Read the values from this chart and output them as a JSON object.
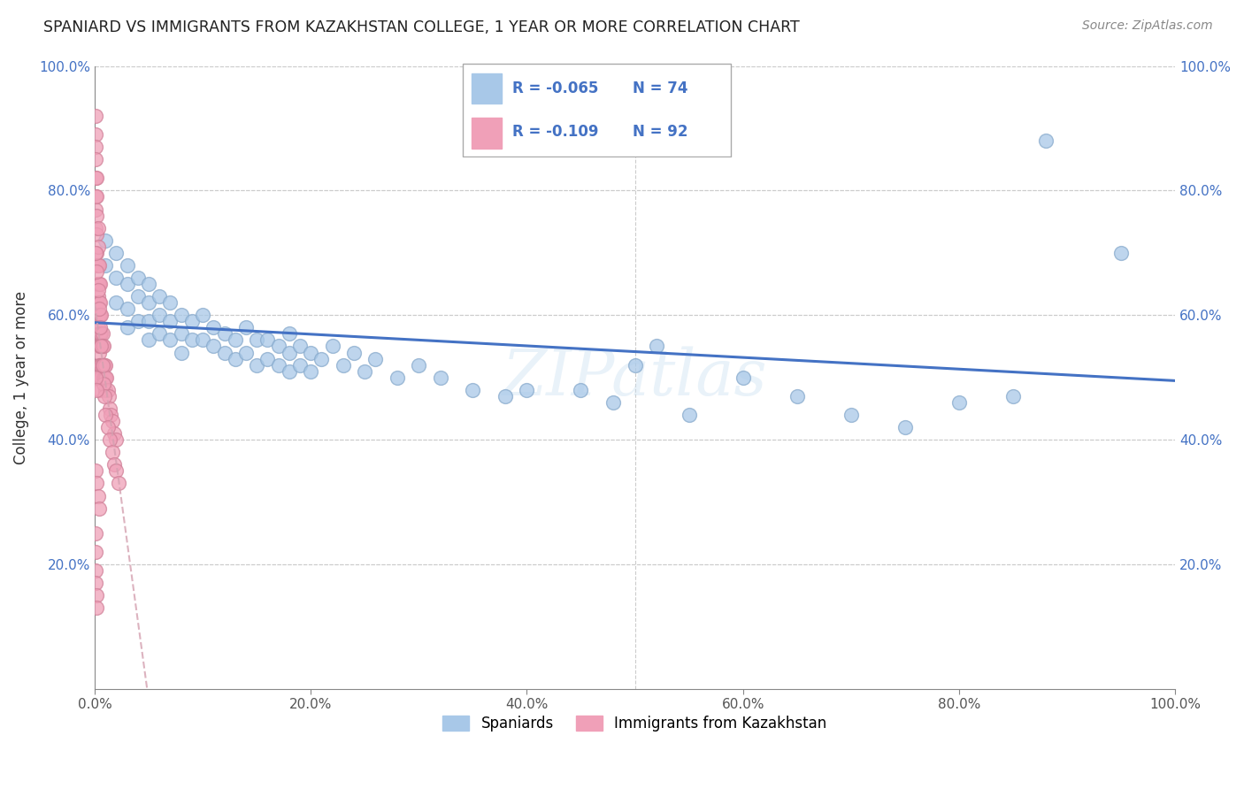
{
  "title": "SPANIARD VS IMMIGRANTS FROM KAZAKHSTAN COLLEGE, 1 YEAR OR MORE CORRELATION CHART",
  "source_text": "Source: ZipAtlas.com",
  "ylabel": "College, 1 year or more",
  "xlim": [
    0.0,
    1.0
  ],
  "ylim": [
    0.0,
    1.0
  ],
  "xtick_positions": [
    0.0,
    0.2,
    0.4,
    0.6,
    0.8,
    1.0
  ],
  "xtick_labels": [
    "0.0%",
    "20.0%",
    "40.0%",
    "60.0%",
    "80.0%",
    "100.0%"
  ],
  "ytick_positions": [
    0.2,
    0.4,
    0.6,
    0.8,
    1.0
  ],
  "ytick_labels": [
    "20.0%",
    "40.0%",
    "60.0%",
    "80.0%",
    "100.0%"
  ],
  "blue_color": "#a8c8e8",
  "blue_edge": "#88aacc",
  "pink_color": "#f0a0b8",
  "pink_edge": "#d08098",
  "line_blue_color": "#4472c4",
  "line_pink_color": "#d4a0b0",
  "watermark": "ZIPatlas",
  "spaniards_x": [
    0.01,
    0.01,
    0.02,
    0.02,
    0.02,
    0.03,
    0.03,
    0.03,
    0.03,
    0.04,
    0.04,
    0.04,
    0.05,
    0.05,
    0.05,
    0.05,
    0.06,
    0.06,
    0.06,
    0.07,
    0.07,
    0.07,
    0.08,
    0.08,
    0.08,
    0.09,
    0.09,
    0.1,
    0.1,
    0.11,
    0.11,
    0.12,
    0.12,
    0.13,
    0.13,
    0.14,
    0.14,
    0.15,
    0.15,
    0.16,
    0.16,
    0.17,
    0.17,
    0.18,
    0.18,
    0.18,
    0.19,
    0.19,
    0.2,
    0.2,
    0.21,
    0.22,
    0.23,
    0.24,
    0.25,
    0.26,
    0.28,
    0.3,
    0.32,
    0.35,
    0.38,
    0.4,
    0.45,
    0.48,
    0.5,
    0.52,
    0.55,
    0.6,
    0.65,
    0.7,
    0.75,
    0.8,
    0.85,
    0.95
  ],
  "spaniards_y": [
    0.72,
    0.68,
    0.7,
    0.66,
    0.62,
    0.68,
    0.65,
    0.61,
    0.58,
    0.66,
    0.63,
    0.59,
    0.65,
    0.62,
    0.59,
    0.56,
    0.63,
    0.6,
    0.57,
    0.62,
    0.59,
    0.56,
    0.6,
    0.57,
    0.54,
    0.59,
    0.56,
    0.6,
    0.56,
    0.58,
    0.55,
    0.57,
    0.54,
    0.56,
    0.53,
    0.58,
    0.54,
    0.56,
    0.52,
    0.56,
    0.53,
    0.55,
    0.52,
    0.57,
    0.54,
    0.51,
    0.55,
    0.52,
    0.54,
    0.51,
    0.53,
    0.55,
    0.52,
    0.54,
    0.51,
    0.53,
    0.5,
    0.52,
    0.5,
    0.48,
    0.47,
    0.48,
    0.48,
    0.46,
    0.52,
    0.55,
    0.44,
    0.5,
    0.47,
    0.44,
    0.42,
    0.46,
    0.47,
    0.7
  ],
  "spaniards_extra": {
    "x": [
      0.35,
      0.88
    ],
    "y": [
      0.94,
      0.88
    ]
  },
  "kazakhstan_x": [
    0.001,
    0.001,
    0.001,
    0.001,
    0.001,
    0.001,
    0.001,
    0.001,
    0.002,
    0.002,
    0.002,
    0.002,
    0.002,
    0.002,
    0.002,
    0.002,
    0.003,
    0.003,
    0.003,
    0.003,
    0.003,
    0.003,
    0.003,
    0.003,
    0.004,
    0.004,
    0.004,
    0.004,
    0.004,
    0.004,
    0.004,
    0.004,
    0.005,
    0.005,
    0.005,
    0.005,
    0.005,
    0.005,
    0.005,
    0.005,
    0.006,
    0.006,
    0.006,
    0.006,
    0.006,
    0.007,
    0.007,
    0.007,
    0.008,
    0.008,
    0.008,
    0.009,
    0.009,
    0.01,
    0.01,
    0.01,
    0.011,
    0.012,
    0.013,
    0.014,
    0.015,
    0.016,
    0.018,
    0.02,
    0.001,
    0.002,
    0.003,
    0.004,
    0.005,
    0.006,
    0.007,
    0.008,
    0.009,
    0.01,
    0.012,
    0.014,
    0.016,
    0.018,
    0.02,
    0.022,
    0.001,
    0.002,
    0.001,
    0.002,
    0.003,
    0.004,
    0.001,
    0.001,
    0.001,
    0.001,
    0.002,
    0.002
  ],
  "kazakhstan_y": [
    0.92,
    0.89,
    0.87,
    0.85,
    0.82,
    0.79,
    0.77,
    0.74,
    0.82,
    0.79,
    0.76,
    0.73,
    0.7,
    0.68,
    0.65,
    0.62,
    0.74,
    0.71,
    0.68,
    0.65,
    0.63,
    0.6,
    0.58,
    0.55,
    0.68,
    0.65,
    0.62,
    0.6,
    0.57,
    0.54,
    0.52,
    0.5,
    0.65,
    0.62,
    0.6,
    0.57,
    0.55,
    0.52,
    0.5,
    0.48,
    0.6,
    0.57,
    0.55,
    0.52,
    0.5,
    0.57,
    0.55,
    0.52,
    0.55,
    0.52,
    0.5,
    0.52,
    0.5,
    0.52,
    0.5,
    0.48,
    0.5,
    0.48,
    0.47,
    0.45,
    0.44,
    0.43,
    0.41,
    0.4,
    0.7,
    0.67,
    0.64,
    0.61,
    0.58,
    0.55,
    0.52,
    0.49,
    0.47,
    0.44,
    0.42,
    0.4,
    0.38,
    0.36,
    0.35,
    0.33,
    0.5,
    0.48,
    0.35,
    0.33,
    0.31,
    0.29,
    0.25,
    0.22,
    0.19,
    0.17,
    0.15,
    0.13
  ]
}
